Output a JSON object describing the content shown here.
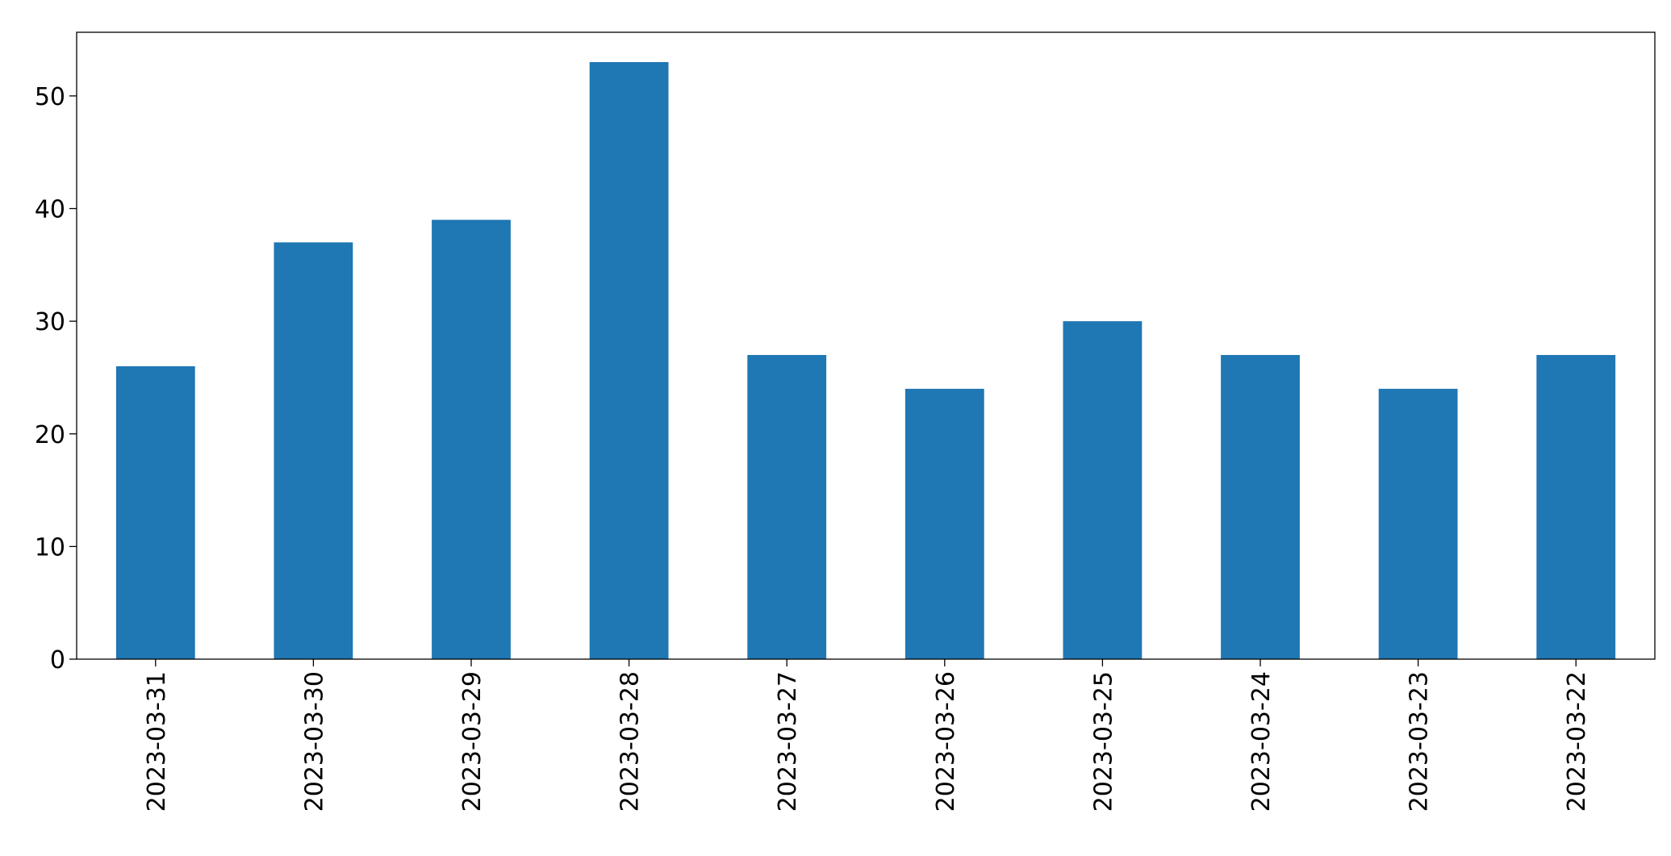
{
  "chart_data": {
    "type": "bar",
    "categories": [
      "2023-03-31",
      "2023-03-30",
      "2023-03-29",
      "2023-03-28",
      "2023-03-27",
      "2023-03-26",
      "2023-03-25",
      "2023-03-24",
      "2023-03-23",
      "2023-03-22"
    ],
    "values": [
      26,
      37,
      39,
      53,
      27,
      24,
      30,
      27,
      24,
      27
    ],
    "color": "#1f77b4",
    "ylim": [
      0,
      55.65
    ],
    "yticks": [
      0,
      10,
      20,
      30,
      40,
      50
    ],
    "grid": false
  }
}
